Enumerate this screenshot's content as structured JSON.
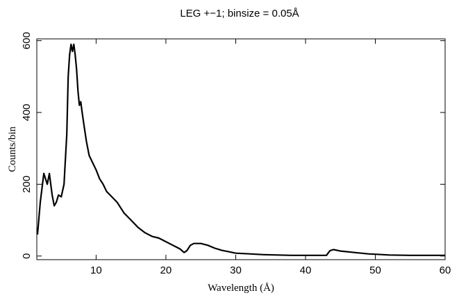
{
  "chart_data": {
    "type": "line",
    "title": "LEG +−1; binsize = 0.05Å",
    "xlabel": "Wavelength (Å)",
    "ylabel": "Counts/bin",
    "xlim": [
      1.5,
      60
    ],
    "ylim": [
      -10,
      605
    ],
    "x_ticks": [
      10,
      20,
      30,
      40,
      50,
      60
    ],
    "x_tick_labels": [
      "10",
      "20",
      "30",
      "40",
      "50",
      "60"
    ],
    "y_ticks": [
      0,
      200,
      400,
      600
    ],
    "y_tick_labels": [
      "0",
      "200",
      "400",
      "600"
    ],
    "grid": false,
    "series": [
      {
        "color": "#000000",
        "x": [
          1.6,
          2.0,
          2.5,
          3.0,
          3.3,
          3.7,
          4.0,
          4.3,
          4.6,
          5.0,
          5.4,
          5.8,
          6.0,
          6.2,
          6.4,
          6.6,
          6.8,
          7.0,
          7.2,
          7.4,
          7.6,
          7.8,
          8.0,
          8.3,
          8.6,
          9.0,
          9.5,
          10.0,
          10.5,
          11.0,
          11.5,
          12.0,
          12.5,
          13.0,
          13.5,
          14.0,
          14.5,
          15.0,
          15.5,
          16.0,
          17.0,
          18.0,
          19.0,
          20.0,
          21.0,
          22.0,
          22.6,
          23.0,
          23.5,
          24.0,
          25.0,
          26.0,
          27.0,
          28.0,
          29.0,
          30.0,
          32.0,
          34.0,
          36.0,
          38.0,
          40.0,
          42.0,
          43.0,
          43.5,
          44.0,
          45.0,
          46.0,
          47.0,
          48.0,
          49.0,
          50.0,
          52.0,
          55.0,
          60.0
        ],
        "y": [
          60,
          150,
          230,
          200,
          230,
          170,
          140,
          150,
          170,
          165,
          200,
          340,
          500,
          560,
          590,
          570,
          590,
          560,
          520,
          460,
          420,
          430,
          400,
          360,
          320,
          280,
          260,
          240,
          215,
          200,
          180,
          170,
          160,
          150,
          135,
          120,
          110,
          100,
          90,
          80,
          65,
          55,
          50,
          40,
          30,
          20,
          10,
          15,
          30,
          35,
          35,
          30,
          22,
          16,
          12,
          8,
          6,
          4,
          3,
          2,
          2,
          2,
          2,
          15,
          18,
          14,
          12,
          10,
          8,
          6,
          5,
          3,
          2,
          2
        ]
      }
    ]
  }
}
